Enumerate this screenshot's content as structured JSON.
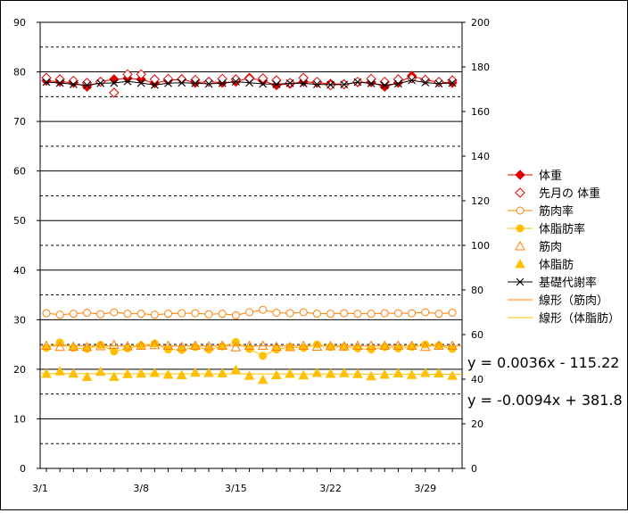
{
  "chart_data": {
    "type": "line",
    "x_axis": {
      "categories": [
        "3/1",
        "3/2",
        "3/3",
        "3/4",
        "3/5",
        "3/6",
        "3/7",
        "3/8",
        "3/9",
        "3/10",
        "3/11",
        "3/12",
        "3/13",
        "3/14",
        "3/15",
        "3/16",
        "3/17",
        "3/18",
        "3/19",
        "3/20",
        "3/21",
        "3/22",
        "3/23",
        "3/24",
        "3/25",
        "3/26",
        "3/27",
        "3/28",
        "3/29",
        "3/30",
        "3/31"
      ],
      "tick_labels": [
        "3/1",
        "3/8",
        "3/15",
        "3/22",
        "3/29"
      ]
    },
    "y_left": {
      "min": 0,
      "max": 90,
      "step": 10,
      "ticks": [
        "0",
        "10",
        "20",
        "30",
        "40",
        "50",
        "60",
        "70",
        "80",
        "90"
      ]
    },
    "y_right": {
      "min": 0,
      "max": 200,
      "step": 20,
      "ticks": [
        "0",
        "20",
        "40",
        "60",
        "80",
        "100",
        "120",
        "140",
        "160",
        "180",
        "200"
      ]
    },
    "gridlines": {
      "solid_left_values": [
        10,
        20,
        30,
        40,
        50,
        60,
        70,
        80,
        90
      ],
      "dashed_left_values": [
        5,
        15,
        25,
        35,
        45,
        55,
        65,
        75,
        85
      ]
    },
    "series": [
      {
        "name": "体重",
        "axis": "left",
        "color": "#e00000",
        "marker": "diamond-filled",
        "line": true,
        "values": [
          78.2,
          78.0,
          77.8,
          77.0,
          78.0,
          78.5,
          78.7,
          78.5,
          77.7,
          78.3,
          78.5,
          77.8,
          78.0,
          77.8,
          78.0,
          78.8,
          78.2,
          77.3,
          77.6,
          78.0,
          77.8,
          77.6,
          77.5,
          77.9,
          77.9,
          77.0,
          77.8,
          79.2,
          78.4,
          77.9,
          77.8
        ]
      },
      {
        "name": "先月の 体重",
        "axis": "left",
        "color": "#e00000",
        "marker": "diamond-open",
        "line": false,
        "values": [
          78.8,
          78.5,
          78.2,
          77.8,
          78.0,
          75.8,
          79.5,
          79.5,
          78.5,
          78.6,
          78.5,
          78.4,
          78.0,
          78.6,
          78.5,
          78.6,
          78.7,
          78.3,
          77.8,
          78.8,
          78.0,
          77.3,
          77.5,
          78.0,
          78.6,
          78.0,
          78.5,
          78.7,
          78.4,
          78.0,
          78.3
        ]
      },
      {
        "name": "筋肉率",
        "axis": "left",
        "color": "#ff8000",
        "marker": "circle-open",
        "line": true,
        "values": [
          31.3,
          31.0,
          31.2,
          31.4,
          31.1,
          31.5,
          31.2,
          31.2,
          31.0,
          31.2,
          31.3,
          31.3,
          31.1,
          31.2,
          30.9,
          31.5,
          32.0,
          31.4,
          31.3,
          31.5,
          31.2,
          31.2,
          31.3,
          31.2,
          31.2,
          31.3,
          31.3,
          31.3,
          31.5,
          31.2,
          31.4
        ]
      },
      {
        "name": "体脂肪率",
        "axis": "left",
        "color": "#ffc000",
        "marker": "circle-filled",
        "line": true,
        "values": [
          24.3,
          25.4,
          24.3,
          24.1,
          24.9,
          23.6,
          24.2,
          24.8,
          25.2,
          24.0,
          23.9,
          24.5,
          24.0,
          24.6,
          25.5,
          24.1,
          22.7,
          24.0,
          24.5,
          24.3,
          25.0,
          24.5,
          24.5,
          24.2,
          24.0,
          24.5,
          24.2,
          24.5,
          25.0,
          24.8,
          24.1
        ]
      },
      {
        "name": "筋肉",
        "axis": "right",
        "color": "#ff8000",
        "marker": "triangle-open",
        "line": false,
        "values": [
          55.0,
          54.5,
          54.6,
          54.4,
          54.8,
          55.4,
          54.8,
          55.0,
          55.3,
          55.0,
          54.5,
          55.0,
          54.8,
          55.0,
          54.3,
          55.0,
          55.0,
          54.6,
          54.4,
          55.0,
          54.6,
          54.8,
          54.7,
          55.0,
          55.0,
          55.0,
          55.0,
          55.0,
          54.5,
          55.0,
          55.0
        ]
      },
      {
        "name": "体脂肪",
        "axis": "right",
        "color": "#ffc000",
        "marker": "triangle-filled",
        "line": false,
        "values": [
          42.4,
          43.5,
          42.5,
          41.0,
          43.3,
          41.0,
          42.3,
          42.5,
          42.8,
          42.0,
          41.8,
          42.9,
          42.8,
          42.6,
          44.2,
          41.5,
          39.7,
          41.8,
          42.4,
          41.7,
          42.8,
          42.4,
          42.7,
          42.3,
          41.3,
          42.0,
          42.6,
          41.9,
          42.8,
          42.6,
          41.5
        ]
      },
      {
        "name": "基礎代謝率",
        "axis": "right",
        "color": "#000000",
        "marker": "x",
        "line": true,
        "values": [
          173.2,
          172.8,
          172.2,
          171.8,
          172.7,
          172.8,
          173.5,
          172.8,
          171.9,
          172.7,
          172.9,
          172.7,
          172.4,
          172.7,
          173.4,
          172.9,
          172.4,
          172.2,
          172.7,
          172.6,
          172.2,
          172.0,
          172.1,
          173.2,
          172.6,
          171.8,
          172.5,
          174.0,
          173.0,
          172.5,
          172.8
        ]
      },
      {
        "name": "線形（筋肉）",
        "axis": "right",
        "color": "#ff8000",
        "marker": "none",
        "line": true,
        "trendline": true,
        "values": [
          54.9,
          54.9
        ]
      },
      {
        "name": "線形（体脂肪）",
        "axis": "right",
        "color": "#ffc000",
        "marker": "none",
        "line": true,
        "trendline": true,
        "values": [
          42.5,
          42.2
        ]
      }
    ],
    "annotations": [
      "y = 0.0036x - 115.22",
      "y = -0.0094x + 381.8"
    ],
    "legend_position": "right"
  }
}
